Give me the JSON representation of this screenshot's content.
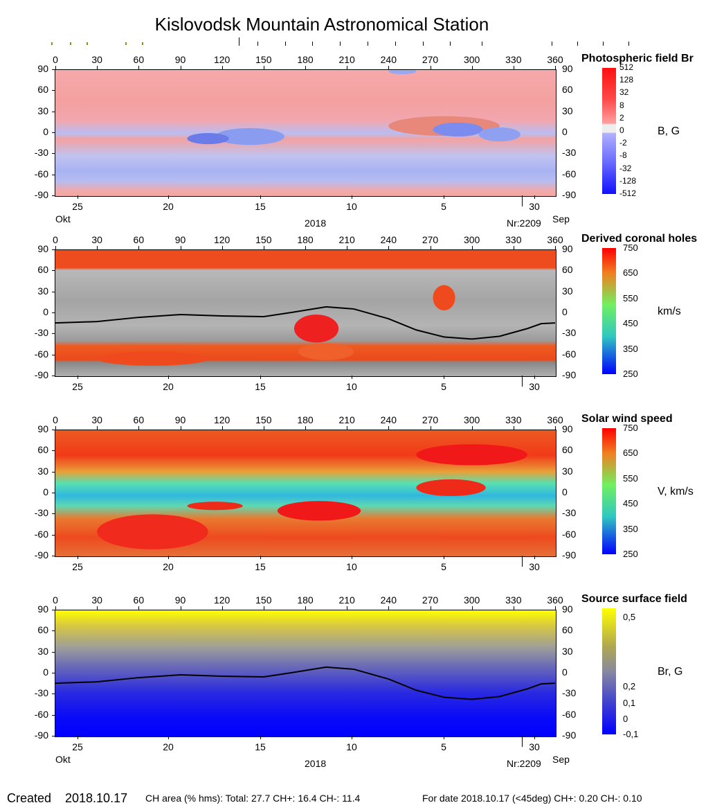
{
  "title": "Kislovodsk Mountain Astronomical Station",
  "chart_data": [
    {
      "type": "heatmap",
      "title": "Photospheric field Br",
      "unit": "B, G",
      "xlim": [
        0,
        360
      ],
      "ylim": [
        -90,
        90
      ],
      "colorbar_labels": [
        "512",
        "128",
        "32",
        "8",
        "2",
        "0",
        "-2",
        "-8",
        "-32",
        "-128",
        "-512"
      ],
      "bottom_axis": true
    },
    {
      "type": "heatmap",
      "title": "Derived coronal holes",
      "unit": "km/s",
      "xlim": [
        0,
        360
      ],
      "ylim": [
        -90,
        90
      ],
      "colorbar_labels": [
        "750",
        "650",
        "550",
        "450",
        "350",
        "250"
      ],
      "neutral_line": true
    },
    {
      "type": "heatmap",
      "title": "Solar wind speed",
      "unit": "V, km/s",
      "xlim": [
        0,
        360
      ],
      "ylim": [
        -90,
        90
      ],
      "colorbar_labels": [
        "750",
        "650",
        "550",
        "450",
        "350",
        "250"
      ]
    },
    {
      "type": "heatmap",
      "title": "Source surface field",
      "unit": "Br, G",
      "xlim": [
        0,
        360
      ],
      "ylim": [
        -90,
        90
      ],
      "colorbar_labels": [
        "0,5",
        "0,2",
        "0,1",
        "0",
        "-0,1"
      ],
      "neutral_line": true,
      "bottom_axis": true
    }
  ],
  "axes": {
    "x_ticks": [
      "0",
      "30",
      "60",
      "90",
      "120",
      "150",
      "180",
      "210",
      "240",
      "270",
      "300",
      "330",
      "360"
    ],
    "y_ticks": [
      "90",
      "60",
      "30",
      "0",
      "-30",
      "-60",
      "-90"
    ],
    "date_ticks": [
      "25",
      "20",
      "15",
      "10",
      "5",
      "30"
    ],
    "month_left": "Okt",
    "year": "2018",
    "rotation": "Nr:2209",
    "month_right": "Sep"
  },
  "neutral_line": [
    [
      0,
      -14
    ],
    [
      30,
      -12
    ],
    [
      60,
      -6
    ],
    [
      90,
      -2
    ],
    [
      120,
      -4
    ],
    [
      150,
      -5
    ],
    [
      170,
      1
    ],
    [
      195,
      9
    ],
    [
      215,
      6
    ],
    [
      240,
      -8
    ],
    [
      260,
      -24
    ],
    [
      280,
      -34
    ],
    [
      300,
      -37
    ],
    [
      320,
      -33
    ],
    [
      340,
      -22
    ],
    [
      350,
      -15
    ],
    [
      360,
      -14
    ]
  ],
  "footer": {
    "created_label": "Created",
    "created_date": "2018.10.17",
    "ch_area": "CH area (% hms): Total: 27.7 CH+: 16.4   CH-: 11.4",
    "for_date": "For date 2018.10.17 (<45deg) CH+: 0.20    CH-: 0.10"
  }
}
